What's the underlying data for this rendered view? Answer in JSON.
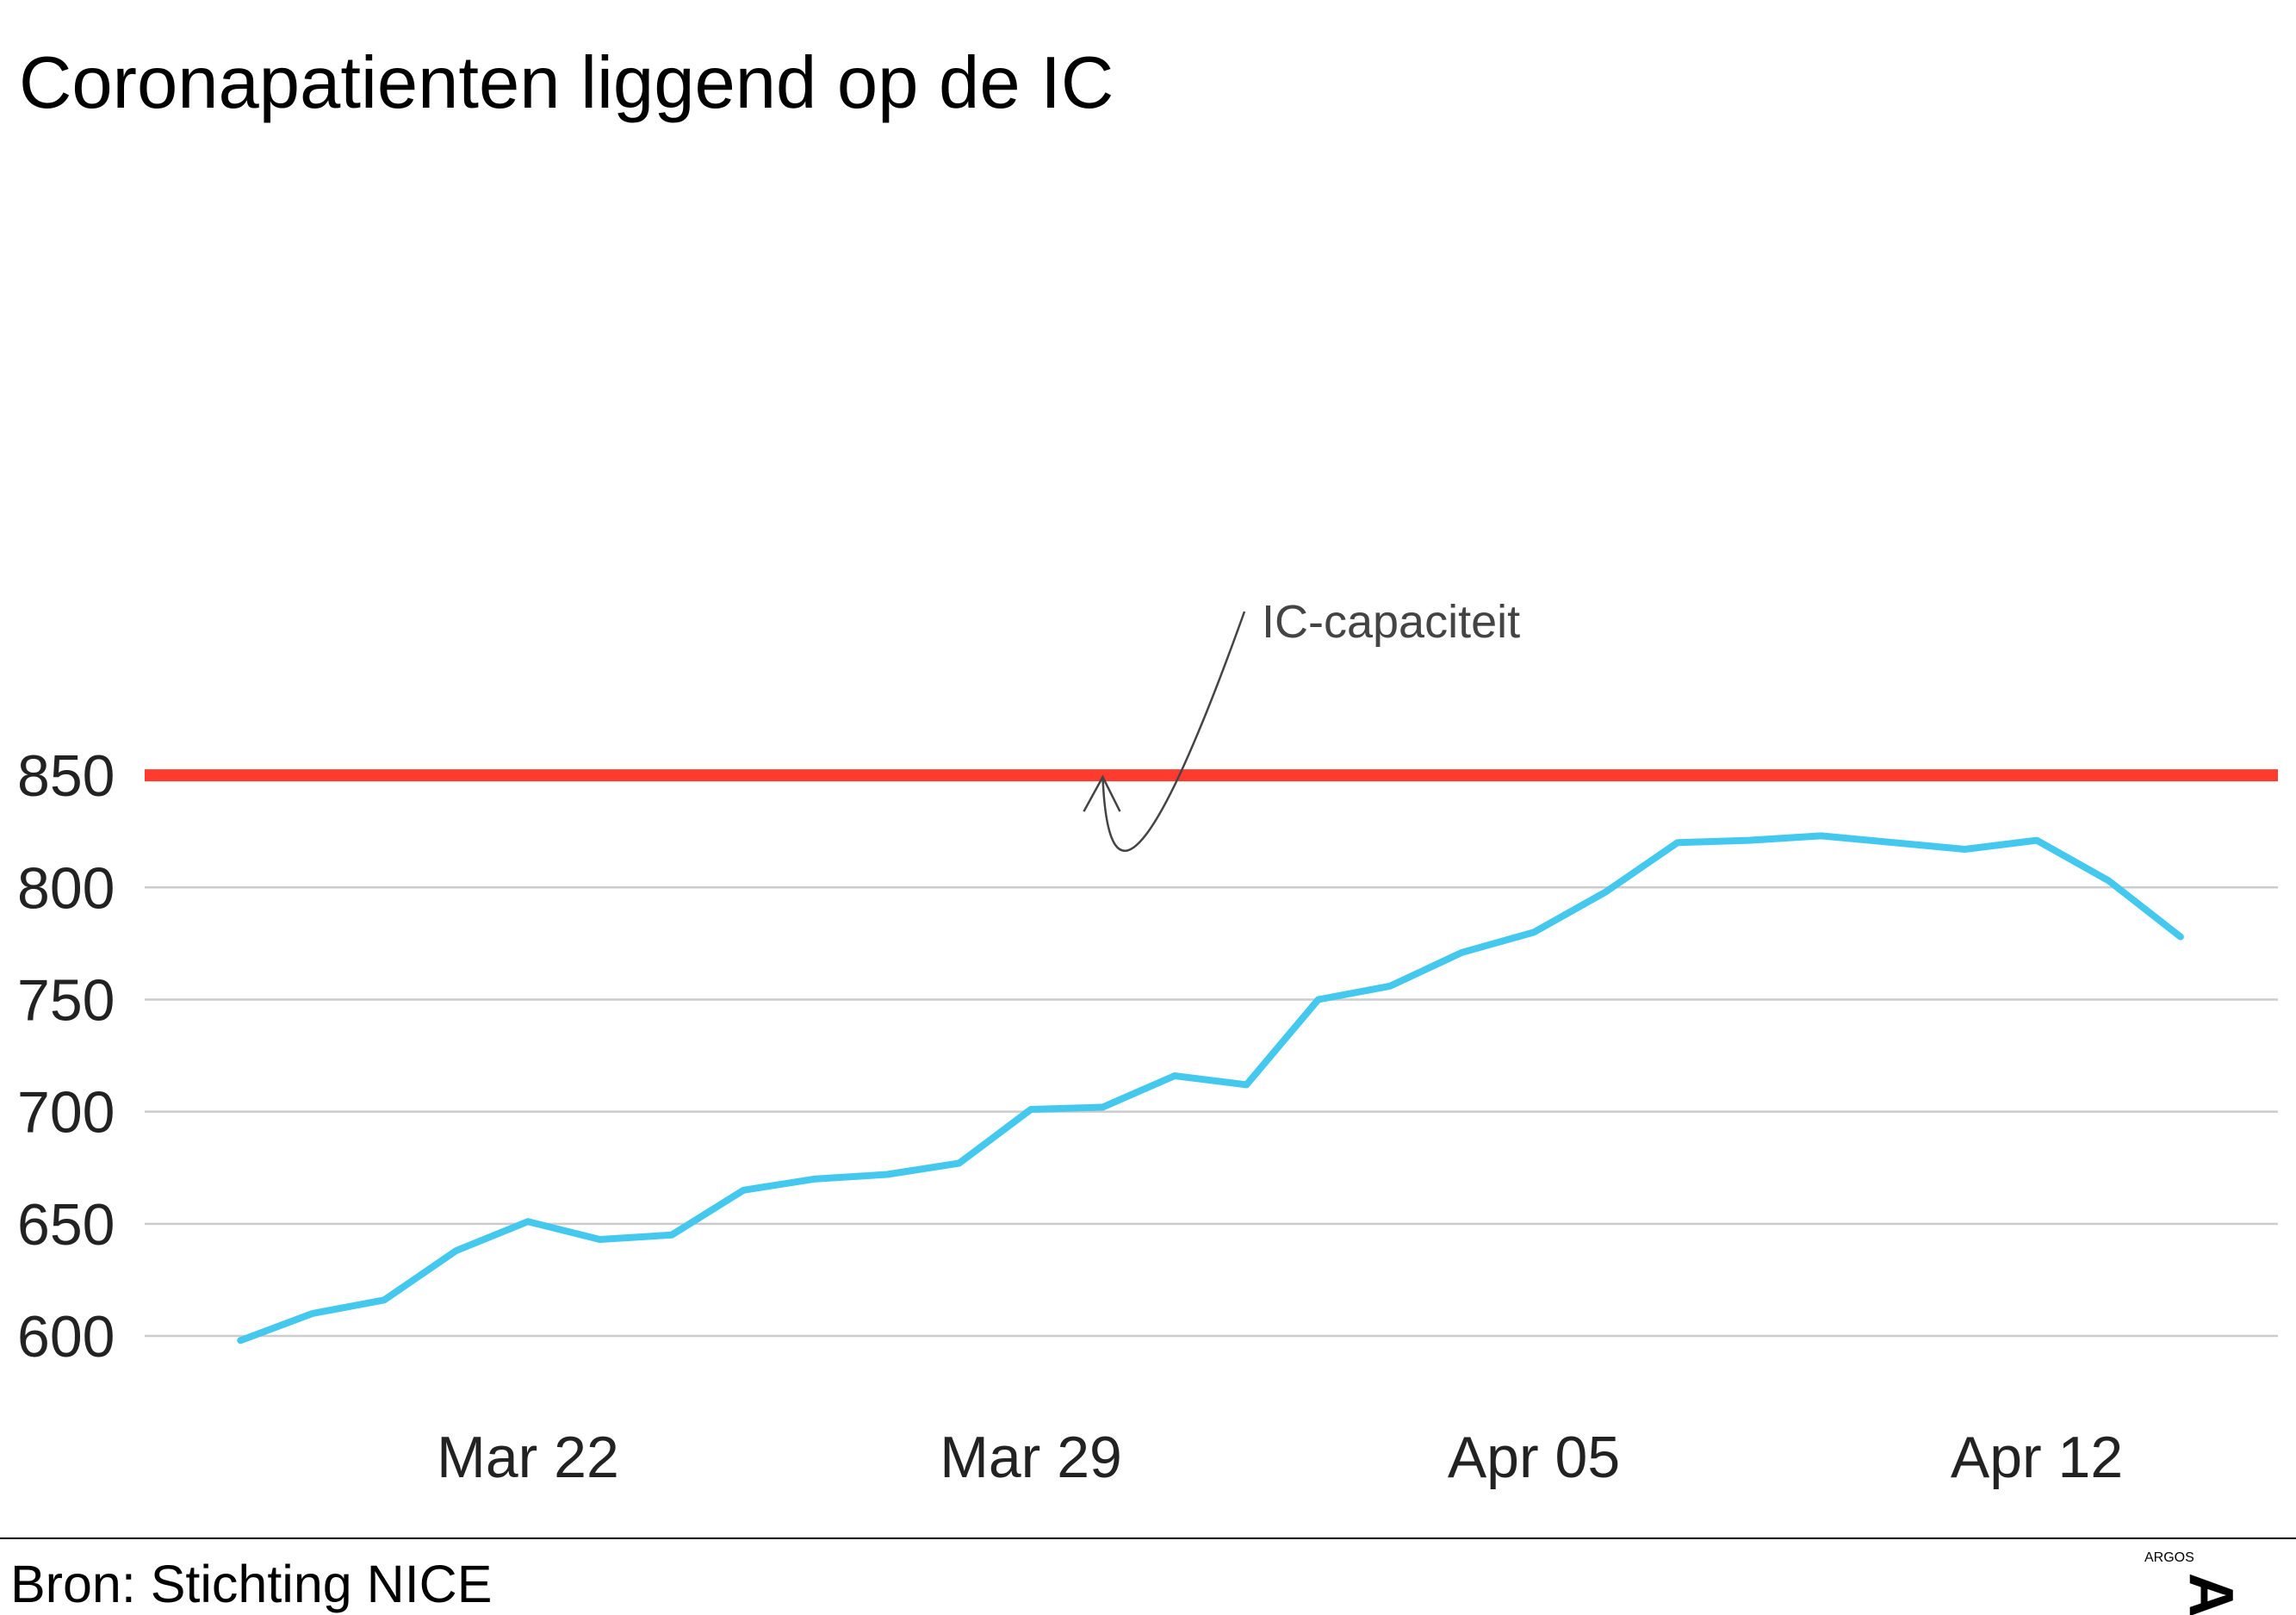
{
  "chart_data": {
    "type": "line",
    "title": "Coronapatienten liggend op de IC",
    "xlabel": "",
    "ylabel": "",
    "ylim": [
      580,
      860
    ],
    "yticks": [
      600,
      650,
      700,
      750,
      800,
      850
    ],
    "grid": true,
    "xticks": [
      {
        "label": "Mar 22",
        "date": "2020-03-22"
      },
      {
        "label": "Mar 29",
        "date": "2020-03-29"
      },
      {
        "label": "Apr 05",
        "date": "2020-04-05"
      },
      {
        "label": "Apr 12",
        "date": "2020-04-12"
      }
    ],
    "x_range": [
      "2020-03-15",
      "2020-04-16"
    ],
    "series": [
      {
        "color": "#45c8ee",
        "x": [
          "2020-03-18",
          "2020-03-19",
          "2020-03-20",
          "2020-03-21",
          "2020-03-22",
          "2020-03-23",
          "2020-03-24",
          "2020-03-25",
          "2020-03-26",
          "2020-03-27",
          "2020-03-28",
          "2020-03-29",
          "2020-03-30",
          "2020-03-31",
          "2020-04-01",
          "2020-04-02",
          "2020-04-03",
          "2020-04-04",
          "2020-04-05",
          "2020-04-06",
          "2020-04-07",
          "2020-04-08",
          "2020-04-09",
          "2020-04-10",
          "2020-04-11",
          "2020-04-12",
          "2020-04-13",
          "2020-04-14"
        ],
        "values": [
          598,
          610,
          616,
          638,
          651,
          643,
          645,
          665,
          670,
          672,
          677,
          701,
          702,
          716,
          712,
          750,
          756,
          771,
          780,
          798,
          820,
          821,
          823,
          820,
          817,
          821,
          803,
          778
        ]
      }
    ],
    "reference_line": {
      "value": 850,
      "color": "#ff3b30"
    },
    "annotations": [
      {
        "text": "IC-capaciteit",
        "points_to": {
          "date": "2020-03-30",
          "value": 850
        }
      }
    ]
  },
  "footer": {
    "source": "Bron: Stichting NICE",
    "logo_small": "ARGOS",
    "logo_big": "A"
  }
}
